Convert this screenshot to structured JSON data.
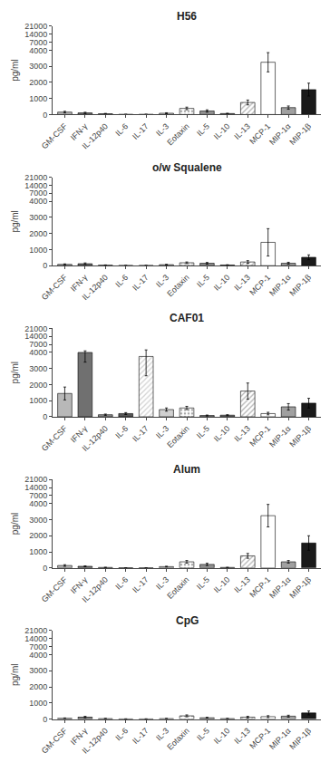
{
  "chart_data": [
    {
      "type": "bar",
      "title": "H56",
      "categories": [
        "GM-CSF",
        "IFN-γ",
        "IL-12p40",
        "IL-6",
        "IL-17",
        "IL-3",
        "Eotaxin",
        "IL-5",
        "IL-10",
        "IL-13",
        "MCP-1",
        "MIP-1α",
        "MIP-1β"
      ],
      "values": [
        150,
        100,
        50,
        10,
        10,
        80,
        380,
        220,
        60,
        750,
        3250,
        430,
        1550
      ],
      "errors": [
        50,
        40,
        20,
        5,
        5,
        30,
        80,
        70,
        20,
        150,
        600,
        100,
        400
      ],
      "colors": [
        "#b8b8b8",
        "#707070",
        "#909090",
        "#555555",
        "#d0d0d0",
        "#d0d0d0",
        "#a8a8a8",
        "#909090",
        "#707070",
        "#b0b0b0",
        "#ffffff",
        "#a0a0a0",
        "#1a1a1a"
      ],
      "ylabel": "pg/ml",
      "ylim": [
        0,
        21000
      ],
      "yticks": [
        0,
        1000,
        2000,
        3000,
        4000,
        7000,
        14000,
        21000
      ],
      "grid": false
    },
    {
      "type": "bar",
      "title": "o/w Squalene",
      "categories": [
        "GM-CSF",
        "IFN-γ",
        "IL-12p40",
        "IL-6",
        "IL-17",
        "IL-3",
        "Eotaxin",
        "IL-5",
        "IL-10",
        "IL-13",
        "MCP-1",
        "MIP-1α",
        "MIP-1β"
      ],
      "values": [
        80,
        120,
        30,
        10,
        10,
        60,
        180,
        150,
        40,
        230,
        1450,
        150,
        520
      ],
      "errors": [
        30,
        50,
        15,
        5,
        5,
        20,
        50,
        50,
        15,
        80,
        850,
        60,
        150
      ],
      "colors": [
        "#b8b8b8",
        "#707070",
        "#909090",
        "#555555",
        "#d0d0d0",
        "#d0d0d0",
        "#a8a8a8",
        "#909090",
        "#707070",
        "#b0b0b0",
        "#ffffff",
        "#a0a0a0",
        "#1a1a1a"
      ],
      "ylabel": "pg/ml",
      "ylim": [
        0,
        21000
      ],
      "yticks": [
        0,
        1000,
        2000,
        3000,
        4000,
        7000,
        14000,
        21000
      ],
      "grid": false
    },
    {
      "type": "bar",
      "title": "CAF01",
      "categories": [
        "GM-CSF",
        "IFN-γ",
        "IL-12p40",
        "IL-6",
        "IL-17",
        "IL-3",
        "Eotaxin",
        "IL-5",
        "IL-10",
        "IL-13",
        "MCP-1",
        "MIP-1α",
        "MIP-1β"
      ],
      "values": [
        1450,
        4000,
        130,
        200,
        3750,
        450,
        550,
        80,
        100,
        1600,
        200,
        620,
        850
      ],
      "errors": [
        400,
        600,
        40,
        60,
        1200,
        100,
        100,
        30,
        30,
        500,
        80,
        200,
        300
      ],
      "colors": [
        "#b8b8b8",
        "#707070",
        "#909090",
        "#555555",
        "#d0d0d0",
        "#d0d0d0",
        "#a8a8a8",
        "#909090",
        "#707070",
        "#b0b0b0",
        "#ffffff",
        "#a0a0a0",
        "#1a1a1a"
      ],
      "ylabel": "pg/ml",
      "ylim": [
        0,
        21000
      ],
      "yticks": [
        0,
        1000,
        2000,
        3000,
        4000,
        7000,
        14000,
        21000
      ],
      "grid": false
    },
    {
      "type": "bar",
      "title": "Alum",
      "categories": [
        "GM-CSF",
        "IFN-γ",
        "IL-12p40",
        "IL-6",
        "IL-17",
        "IL-3",
        "Eotaxin",
        "IL-5",
        "IL-10",
        "IL-13",
        "MCP-1",
        "MIP-1α",
        "MIP-1β"
      ],
      "values": [
        150,
        100,
        30,
        10,
        10,
        80,
        380,
        220,
        30,
        750,
        3250,
        380,
        1550
      ],
      "errors": [
        50,
        30,
        15,
        5,
        5,
        25,
        80,
        70,
        10,
        150,
        700,
        80,
        450
      ],
      "colors": [
        "#b8b8b8",
        "#707070",
        "#909090",
        "#555555",
        "#d0d0d0",
        "#d0d0d0",
        "#a8a8a8",
        "#909090",
        "#707070",
        "#b0b0b0",
        "#ffffff",
        "#a0a0a0",
        "#1a1a1a"
      ],
      "ylabel": "pg/ml",
      "ylim": [
        0,
        21000
      ],
      "yticks": [
        0,
        1000,
        2000,
        3000,
        4000,
        7000,
        14000,
        21000
      ],
      "grid": false
    },
    {
      "type": "bar",
      "title": "CpG",
      "categories": [
        "GM-CSF",
        "IFN-γ",
        "IL-12p40",
        "IL-6",
        "IL-17",
        "IL-3",
        "Eotaxin",
        "IL-5",
        "IL-10",
        "IL-13",
        "MCP-1",
        "MIP-1α",
        "MIP-1β"
      ],
      "values": [
        50,
        120,
        30,
        10,
        10,
        30,
        200,
        80,
        30,
        120,
        150,
        180,
        380
      ],
      "errors": [
        20,
        50,
        15,
        5,
        5,
        10,
        60,
        30,
        10,
        50,
        60,
        60,
        120
      ],
      "colors": [
        "#b8b8b8",
        "#707070",
        "#909090",
        "#555555",
        "#d0d0d0",
        "#d0d0d0",
        "#a8a8a8",
        "#909090",
        "#707070",
        "#b0b0b0",
        "#ffffff",
        "#a0a0a0",
        "#1a1a1a"
      ],
      "ylabel": "pg/ml",
      "ylim": [
        0,
        21000
      ],
      "yticks": [
        0,
        1000,
        2000,
        3000,
        4000,
        7000,
        14000,
        21000
      ],
      "grid": false
    }
  ]
}
